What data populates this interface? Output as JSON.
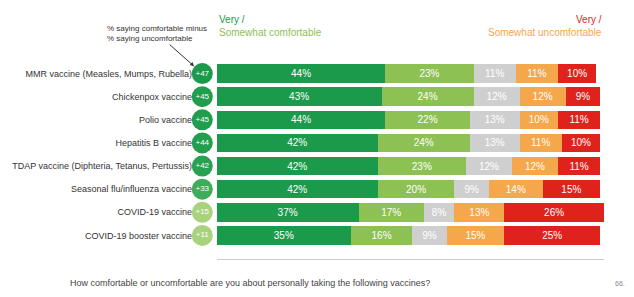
{
  "chart_data": {
    "type": "bar",
    "orientation": "horizontal",
    "stacked": true,
    "data_labels": true,
    "tick_labels": "y",
    "grid": false,
    "categories": [
      "MMR vaccine (Measles, Mumps, Rubella)",
      "Chickenpox vaccine",
      "Polio vaccine",
      "Hepatitis B vaccine",
      "TDAP vaccine (Diphteria, Tetanus, Pertussis)",
      "Seasonal flu/influenza vaccine",
      "COVID-19 vaccine",
      "COVID-19 booster vaccine"
    ],
    "series": [
      {
        "color": "#1b9a4b",
        "values": [
          44,
          43,
          44,
          42,
          42,
          42,
          37,
          35
        ],
        "value_labels": [
          "44%",
          "43%",
          "44%",
          "42%",
          "42%",
          "42%",
          "37%",
          "35%"
        ]
      },
      {
        "color": "#8dc153",
        "values": [
          23,
          24,
          22,
          24,
          23,
          20,
          17,
          16
        ],
        "value_labels": [
          "23%",
          "24%",
          "22%",
          "24%",
          "23%",
          "20%",
          "17%",
          "16%"
        ]
      },
      {
        "color": "#cfcfcf",
        "values": [
          11,
          12,
          13,
          13,
          12,
          9,
          8,
          9
        ],
        "value_labels": [
          "11%",
          "12%",
          "13%",
          "13%",
          "12%",
          "9%",
          "8%",
          "9%"
        ]
      },
      {
        "color": "#f5a74b",
        "values": [
          11,
          12,
          10,
          11,
          12,
          14,
          13,
          15
        ],
        "value_labels": [
          "11%",
          "12%",
          "10%",
          "11%",
          "12%",
          "14%",
          "13%",
          "15%"
        ]
      },
      {
        "color": "#e0221c",
        "values": [
          10,
          9,
          11,
          10,
          11,
          15,
          26,
          25
        ],
        "value_labels": [
          "10%",
          "9%",
          "11%",
          "10%",
          "11%",
          "15%",
          "26%",
          "25%"
        ]
      }
    ],
    "xlim": [
      0,
      101
    ],
    "xticks": [],
    "net_scores": {
      "values": [
        47,
        45,
        45,
        44,
        42,
        33,
        15,
        11
      ],
      "value_labels": [
        "+47",
        "+45",
        "+45",
        "+44",
        "+42",
        "+33",
        "+15",
        "+11"
      ]
    },
    "annotations": {
      "net_note": [
        "% saying comfortable minus",
        "% saying uncomfortable"
      ],
      "header_left": [
        {
          "text": "Very /",
          "color": "#1b9a4b"
        },
        {
          "text": "Somewhat comfortable",
          "color": "#8dc153"
        }
      ],
      "header_right": [
        {
          "text": "Very /",
          "color": "#e0221c"
        },
        {
          "text": "Somewhat uncomfortable",
          "color": "#f5a74b"
        }
      ],
      "question": "How comfortable or uncomfortable are you about personally taking the following vaccines?",
      "page": "66."
    }
  }
}
